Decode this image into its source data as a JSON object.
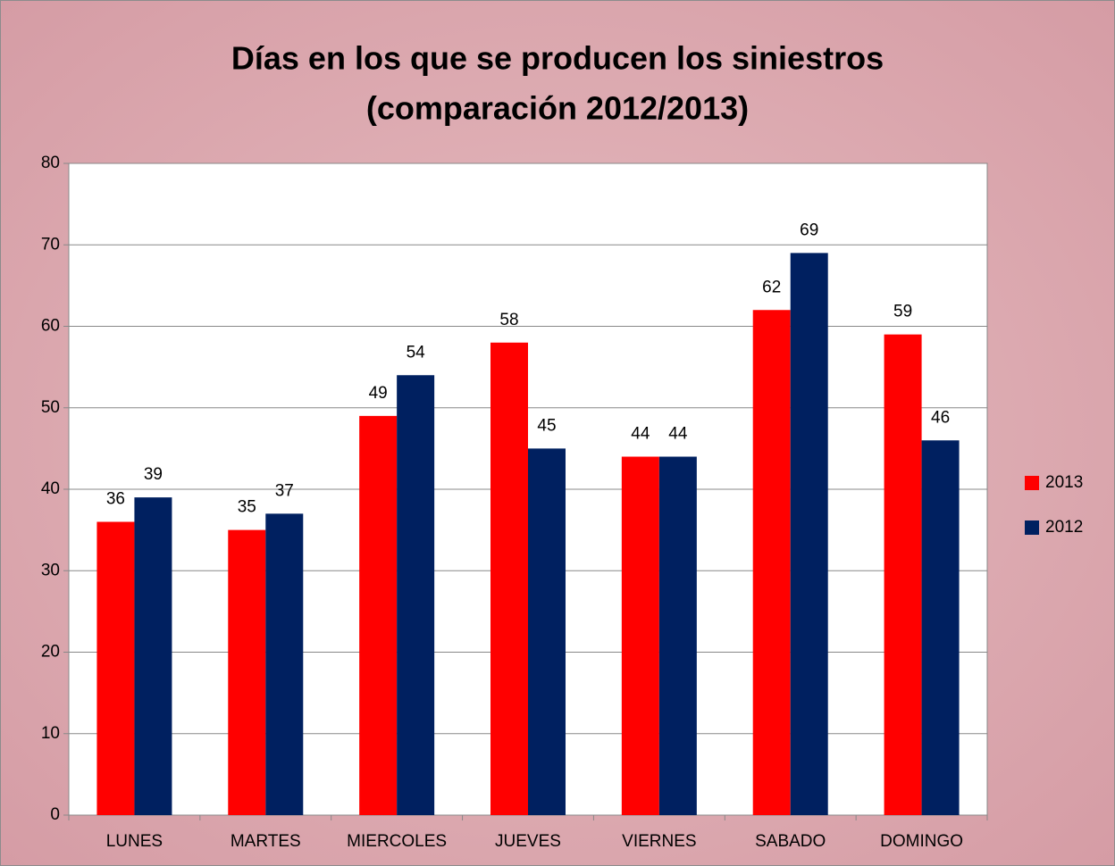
{
  "chart_data": {
    "type": "bar",
    "title": [
      "Días en los que se producen los siniestros",
      "(comparación 2012/2013)"
    ],
    "categories": [
      "LUNES",
      "MARTES",
      "MIERCOLES",
      "JUEVES",
      "VIERNES",
      "SABADO",
      "DOMINGO"
    ],
    "series": [
      {
        "name": "2013",
        "color": "#ff0000",
        "values": [
          36,
          35,
          49,
          58,
          44,
          62,
          59
        ]
      },
      {
        "name": "2012",
        "color": "#002060",
        "values": [
          39,
          37,
          54,
          45,
          44,
          69,
          46
        ]
      }
    ],
    "ylim": [
      0,
      80
    ],
    "yticks": [
      0,
      10,
      20,
      30,
      40,
      50,
      60,
      70,
      80
    ],
    "grid": true,
    "legend": "right"
  }
}
